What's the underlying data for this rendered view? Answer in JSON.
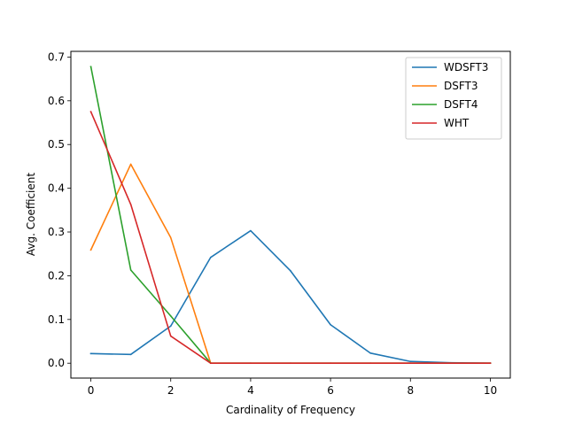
{
  "chart_data": {
    "type": "line",
    "xlabel": "Cardinality of Frequency",
    "ylabel": "Avg. Coefficient",
    "xlim": [
      -0.5,
      10.5
    ],
    "ylim": [
      -0.034,
      0.713
    ],
    "xticks": [
      0,
      2,
      4,
      6,
      8,
      10
    ],
    "yticks": [
      0.0,
      0.1,
      0.2,
      0.3,
      0.4,
      0.5,
      0.6,
      0.7
    ],
    "xtick_labels": [
      "0",
      "2",
      "4",
      "6",
      "8",
      "10"
    ],
    "ytick_labels": [
      "0.0",
      "0.1",
      "0.2",
      "0.3",
      "0.4",
      "0.5",
      "0.6",
      "0.7"
    ],
    "grid": false,
    "legend_position": "top-right",
    "x": [
      0,
      1,
      2,
      3,
      4,
      5,
      6,
      7,
      8,
      9,
      10
    ],
    "series": [
      {
        "name": "WDSFT3",
        "color": "#1f77b4",
        "values": [
          0.022,
          0.02,
          0.085,
          0.242,
          0.303,
          0.211,
          0.088,
          0.023,
          0.004,
          0.001,
          0.0
        ]
      },
      {
        "name": "DSFT3",
        "color": "#ff7f0e",
        "values": [
          0.259,
          0.455,
          0.287,
          0.0,
          0.0,
          0.0,
          0.0,
          0.0,
          0.0,
          0.0,
          0.0
        ]
      },
      {
        "name": "DSFT4",
        "color": "#2ca02c",
        "values": [
          0.678,
          0.213,
          0.108,
          0.0,
          0.0,
          0.0,
          0.0,
          0.0,
          0.0,
          0.0,
          0.0
        ]
      },
      {
        "name": "WHT",
        "color": "#d62728",
        "values": [
          0.575,
          0.363,
          0.062,
          0.0,
          0.0,
          0.0,
          0.0,
          0.0,
          0.0,
          0.0,
          0.0
        ]
      }
    ]
  }
}
